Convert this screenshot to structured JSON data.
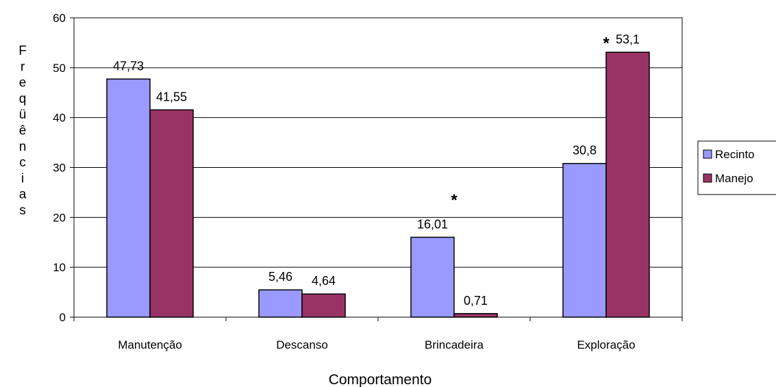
{
  "chart_data": {
    "type": "bar",
    "categories": [
      "Manutenção",
      "Descanso",
      "Brincadeira",
      "Exploração"
    ],
    "series": [
      {
        "name": "Recinto",
        "color": "#9999ff",
        "values": [
          47.73,
          5.46,
          16.01,
          30.8
        ],
        "labels": [
          "47,73",
          "5,46",
          "16,01",
          "30,8"
        ]
      },
      {
        "name": "Manejo",
        "color": "#993366",
        "values": [
          41.55,
          4.64,
          0.71,
          53.1
        ],
        "labels": [
          "41,55",
          "4,64",
          "0,71",
          "53,1"
        ]
      }
    ],
    "ylim": [
      0,
      60
    ],
    "yticks": [
      0,
      10,
      20,
      30,
      40,
      50,
      60
    ],
    "xlabel": "Comportamento",
    "ylabel": "Freqüências",
    "grid": true,
    "legend": "right",
    "annotations": [
      {
        "text": "*",
        "category": "Brincadeira",
        "value": 24
      },
      {
        "text": "*",
        "category": "Exploração",
        "value": 55.5
      }
    ]
  }
}
